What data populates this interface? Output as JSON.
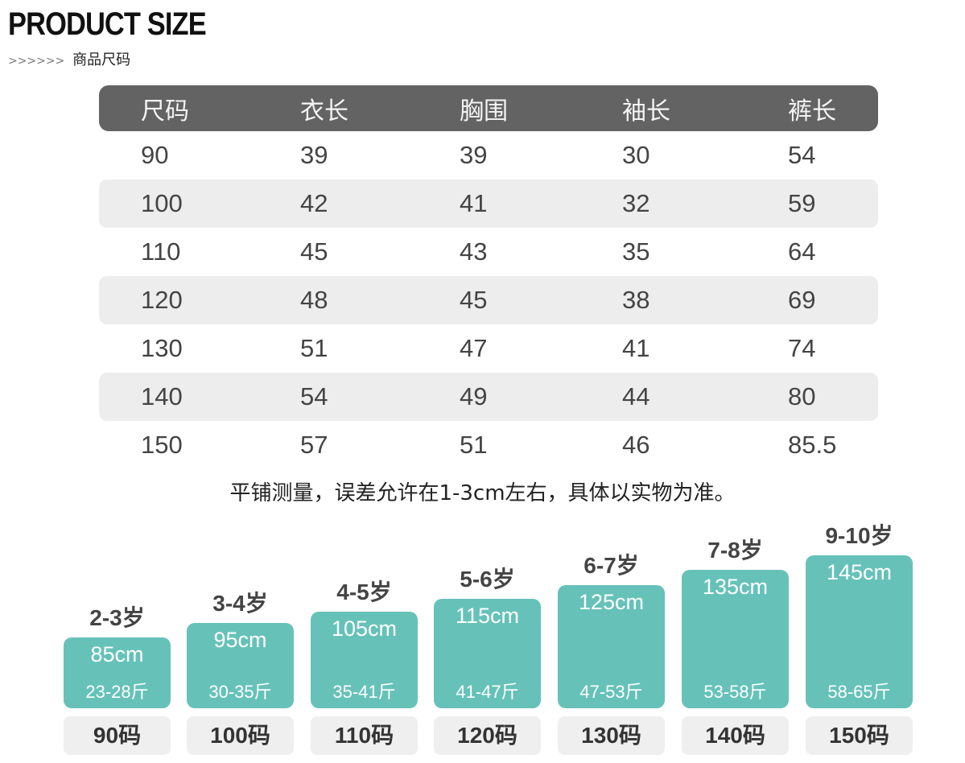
{
  "heading": "PRODUCT SIZE",
  "subheading_arrows": ">>>>>>",
  "subheading": "商品尺码",
  "table": {
    "headers": [
      "尺码",
      "衣长",
      "胸围",
      "袖长",
      "裤长"
    ],
    "rows": [
      [
        "90",
        "39",
        "39",
        "30",
        "54"
      ],
      [
        "100",
        "42",
        "41",
        "32",
        "59"
      ],
      [
        "110",
        "45",
        "43",
        "35",
        "64"
      ],
      [
        "120",
        "48",
        "45",
        "38",
        "69"
      ],
      [
        "130",
        "51",
        "47",
        "41",
        "74"
      ],
      [
        "140",
        "54",
        "49",
        "44",
        "80"
      ],
      [
        "150",
        "57",
        "51",
        "46",
        "85.5"
      ]
    ]
  },
  "note": "平铺测量，误差允许在1-3cm左右，具体以实物为准。",
  "sizes": [
    {
      "age": "2-3岁",
      "height": "85cm",
      "weight": "23-28斤",
      "size": "90码"
    },
    {
      "age": "3-4岁",
      "height": "95cm",
      "weight": "30-35斤",
      "size": "100码"
    },
    {
      "age": "4-5岁",
      "height": "105cm",
      "weight": "35-41斤",
      "size": "110码"
    },
    {
      "age": "5-6岁",
      "height": "115cm",
      "weight": "41-47斤",
      "size": "120码"
    },
    {
      "age": "6-7岁",
      "height": "125cm",
      "weight": "47-53斤",
      "size": "130码"
    },
    {
      "age": "7-8岁",
      "height": "135cm",
      "weight": "53-58斤",
      "size": "140码"
    },
    {
      "age": "9-10岁",
      "height": "145cm",
      "weight": "58-65斤",
      "size": "150码"
    }
  ],
  "colors": {
    "header_bg": "#636363",
    "row_alt": "#ededed",
    "block": "#66c2b9"
  }
}
